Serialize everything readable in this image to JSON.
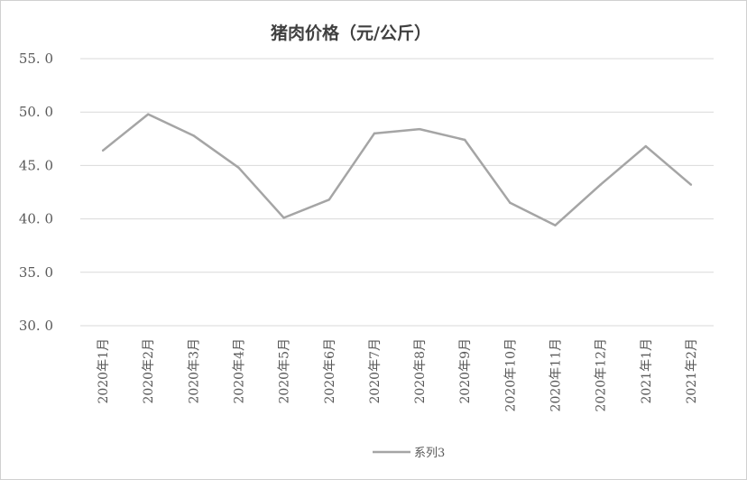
{
  "chart_data": {
    "type": "line",
    "title": "猪肉价格（元/公斤）",
    "categories": [
      "2020年1月",
      "2020年2月",
      "2020年3月",
      "2020年4月",
      "2020年5月",
      "2020年6月",
      "2020年7月",
      "2020年8月",
      "2020年9月",
      "2020年10月",
      "2020年11月",
      "2020年12月",
      "2021年1月",
      "2021年2月"
    ],
    "series": [
      {
        "name": "系列3",
        "values": [
          46.4,
          49.8,
          47.8,
          44.8,
          40.1,
          41.8,
          48.0,
          48.4,
          47.4,
          41.5,
          39.4,
          43.2,
          46.8,
          43.2
        ],
        "color": "#a5a5a5"
      }
    ],
    "yticks": [
      "30. 0",
      "35. 0",
      "40. 0",
      "45. 0",
      "50. 0",
      "55. 0"
    ],
    "ylim": [
      30,
      55
    ],
    "grid": true,
    "legend_position": "bottom",
    "xlabel": "",
    "ylabel": ""
  }
}
